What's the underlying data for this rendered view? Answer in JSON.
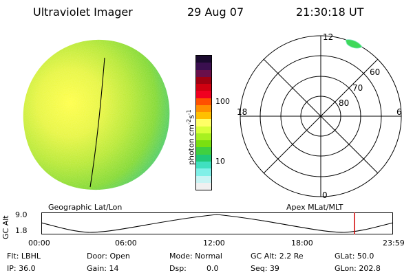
{
  "header": {
    "title": "Ultraviolet Imager",
    "date": "29 Aug 07",
    "time": "21:30:18 UT"
  },
  "colorbar": {
    "unit_label": "photon cm",
    "unit_exp1": "-2",
    "unit_mid": "s",
    "unit_exp2": "-1",
    "tick_100": "100",
    "tick_10": "10",
    "colors": [
      "#1a0a2e",
      "#3a0f4f",
      "#6a0f4a",
      "#a00010",
      "#d00010",
      "#f00020",
      "#ff5000",
      "#ff9000",
      "#ffc000",
      "#ffff66",
      "#d8ff3a",
      "#a8f020",
      "#7ae010",
      "#40d040",
      "#20c878",
      "#40e0c0",
      "#80f0e8",
      "#c8f4f4",
      "#f0f0f0"
    ]
  },
  "polar": {
    "label_12": "12",
    "label_18": "18",
    "label_6": "6",
    "label_0": "0",
    "label_60": "60",
    "label_70": "70",
    "label_80": "80"
  },
  "timeline": {
    "left_caption": "Geographic Lat/Lon",
    "right_caption": "Apex MLat/MLT",
    "axis_label": "GC Alt",
    "ymax": "9.0",
    "ymin": "1.8",
    "ticks": [
      "00:00",
      "06:00",
      "12:00",
      "18:00",
      "23:59"
    ]
  },
  "info": {
    "flt": "Flt: LBHL",
    "ip": "IP: 36.0",
    "door": "Door: Open",
    "gain": "Gain: 14",
    "mode": "Mode: Normal",
    "dsp_label": "Dsp:",
    "dsp_value": "0.0",
    "gc_alt": "GC Alt: 2.2 Re",
    "seq": "Seq: 39",
    "glat": "GLat: 50.0",
    "glon": "GLon: 202.8"
  }
}
